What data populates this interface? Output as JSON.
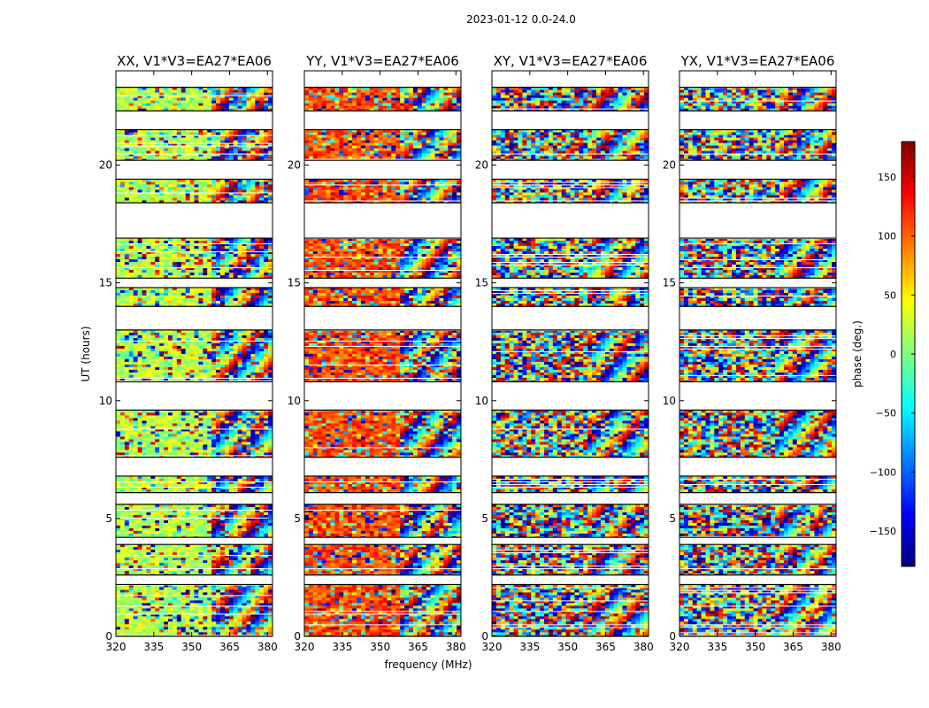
{
  "chart_data": {
    "type": "heatmap",
    "suptitle": "2023-01-12 0.0-24.0",
    "xlabel": "frequency (MHz)",
    "ylabel": "UT (hours)",
    "xlim": [
      320,
      382
    ],
    "ylim": [
      0,
      24
    ],
    "x_ticks": [
      320,
      335,
      350,
      365,
      380
    ],
    "y_ticks": [
      0,
      5,
      10,
      15,
      20
    ],
    "colorbar": {
      "label": "phase (deg.)",
      "range": [
        -180,
        180
      ],
      "ticks": [
        150,
        100,
        50,
        0,
        -50,
        -100,
        -150
      ],
      "tick_labels": [
        "150",
        "100",
        "50",
        "0",
        "−50",
        "−100",
        "−150"
      ],
      "colormap": [
        "#00007f",
        "#0000ff",
        "#007fff",
        "#00ffff",
        "#7fff7f",
        "#ffff00",
        "#ff7f00",
        "#ff0000",
        "#7f0000"
      ]
    },
    "panels": [
      {
        "title": "XX, V1*V3=EA27*EA06",
        "product": "XX",
        "dominant_phase_deg": 20
      },
      {
        "title": "YY, V1*V3=EA27*EA06",
        "product": "YY",
        "dominant_phase_deg": 110
      },
      {
        "title": "XY, V1*V3=EA27*EA06",
        "product": "XY",
        "dominant_phase_deg": null
      },
      {
        "title": "YX, V1*V3=EA27*EA06",
        "product": "YX",
        "dominant_phase_deg": null
      }
    ],
    "data_gaps_ut_hours": [
      [
        22.0,
        21.5
      ],
      [
        13.8,
        13.6
      ],
      [
        2.6,
        2.4
      ],
      [
        17.15,
        16.9
      ],
      [
        20.75,
        20.45
      ]
    ],
    "scans_ut_hours": [
      [
        23.3,
        22.3
      ],
      [
        21.5,
        20.2
      ],
      [
        19.4,
        18.4
      ],
      [
        16.9,
        15.2
      ],
      [
        14.8,
        14.0
      ],
      [
        13.0,
        10.8
      ],
      [
        9.6,
        7.6
      ],
      [
        6.8,
        6.1
      ],
      [
        5.6,
        4.2
      ],
      [
        3.9,
        2.6
      ],
      [
        2.2,
        0.0
      ]
    ]
  }
}
